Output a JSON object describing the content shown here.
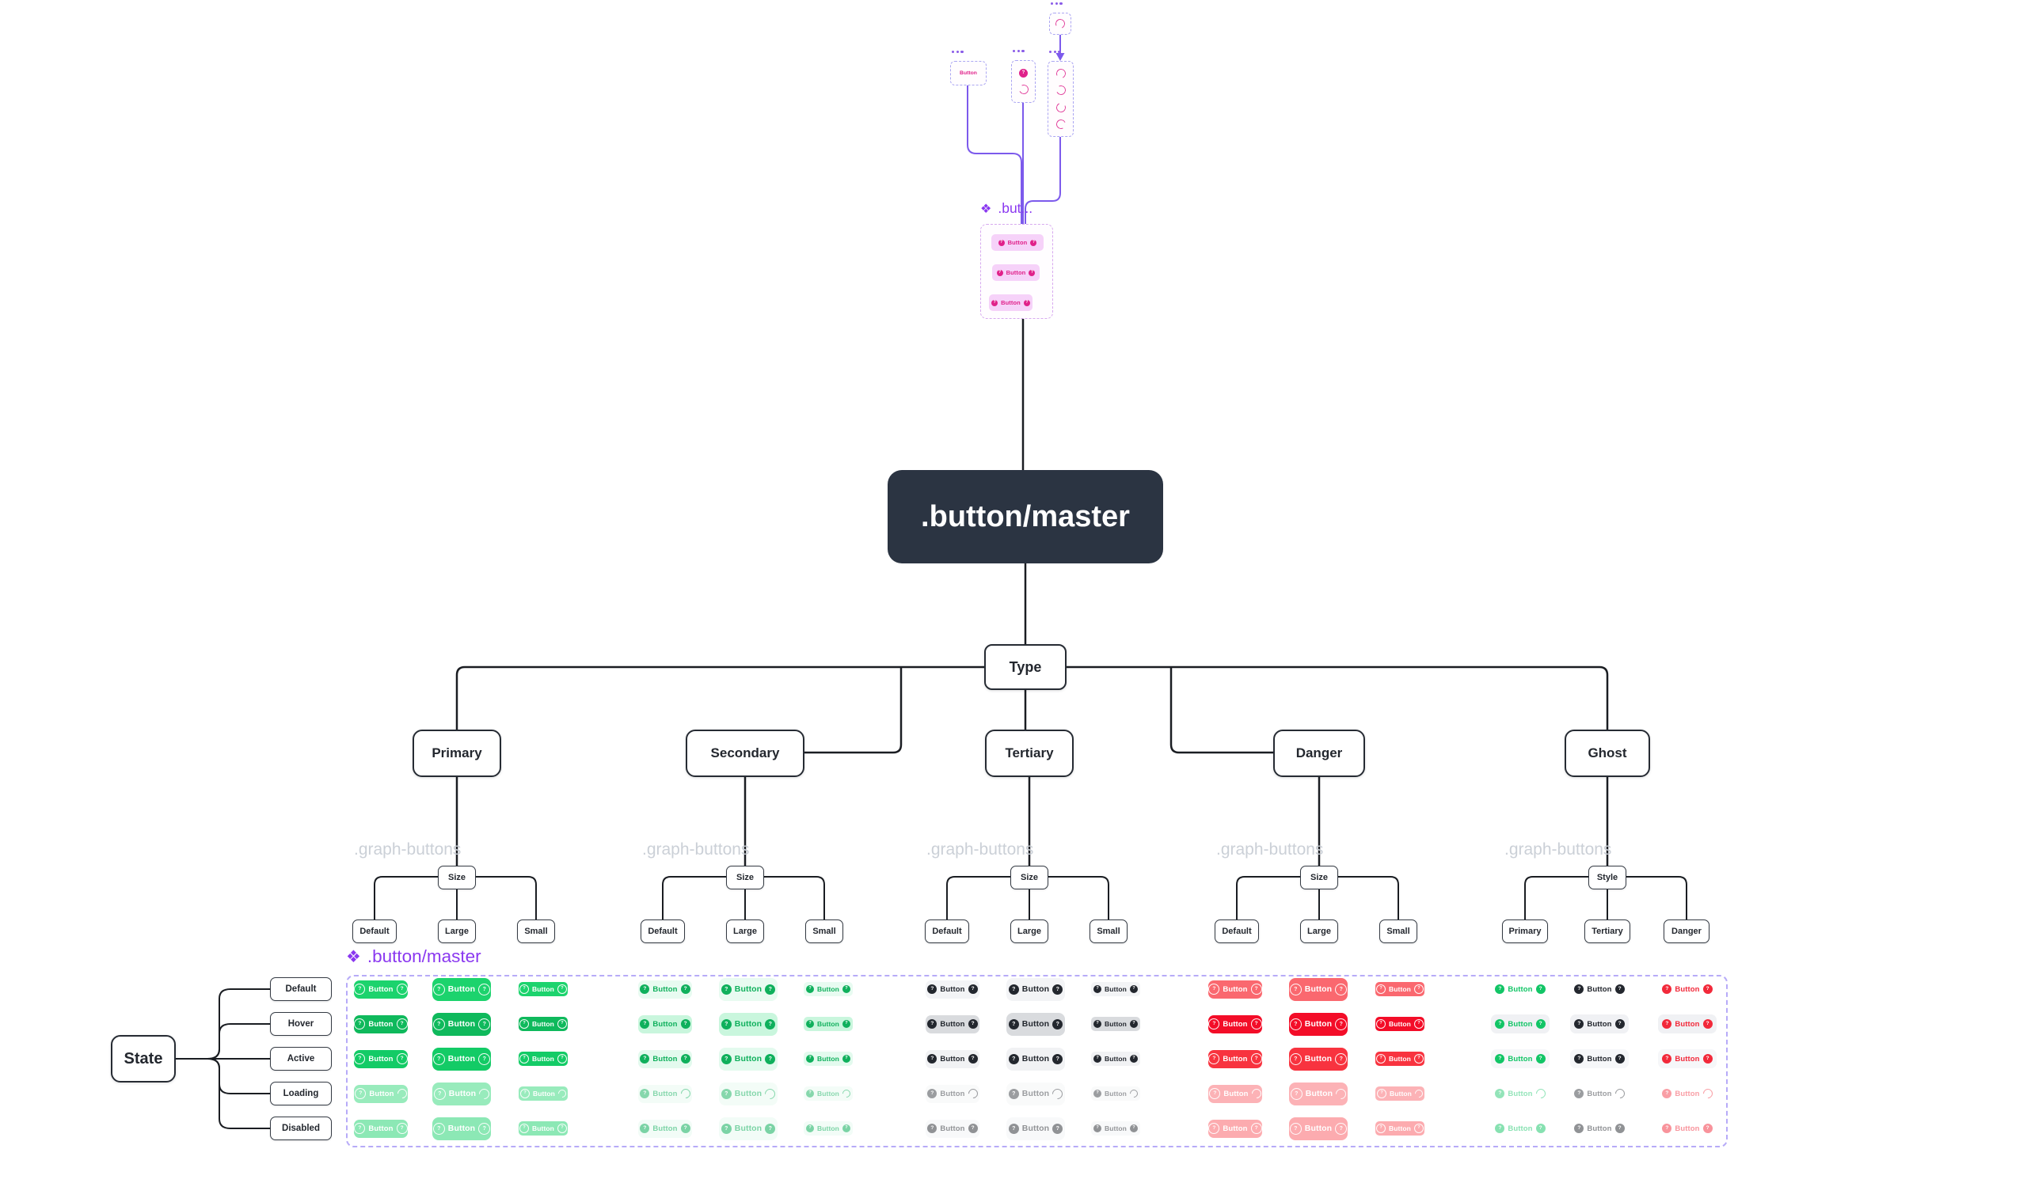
{
  "top_instances": [
    {
      "name": "instance-button",
      "label": "Button"
    },
    {
      "name": "instance-badge-spinner",
      "icons": [
        "question-badge",
        "spinner"
      ]
    },
    {
      "name": "instance-spinner-stack",
      "icons": [
        "spinner",
        "spinner",
        "spinner",
        "spinner"
      ]
    },
    {
      "name": "instance-spinner",
      "icons": [
        "spinner"
      ]
    }
  ],
  "component_instance": {
    "icon": "component-icon",
    "label": ".but...",
    "buttons": [
      "Button",
      "Button",
      "Button"
    ]
  },
  "master_node": {
    "label": ".button/master"
  },
  "tree": {
    "root": "Type",
    "group_overlay_label": ".graph-buttons",
    "branches": [
      {
        "label": "Primary",
        "pivot": "Size",
        "children": [
          "Default",
          "Large",
          "Small"
        ]
      },
      {
        "label": "Secondary",
        "pivot": "Size",
        "children": [
          "Default",
          "Large",
          "Small"
        ]
      },
      {
        "label": "Tertiary",
        "pivot": "Size",
        "children": [
          "Default",
          "Large",
          "Small"
        ]
      },
      {
        "label": "Danger",
        "pivot": "Size",
        "children": [
          "Default",
          "Large",
          "Small"
        ]
      },
      {
        "label": "Ghost",
        "pivot": "Style",
        "children": [
          "Primary",
          "Tertiary",
          "Danger"
        ]
      }
    ]
  },
  "states_tree": {
    "root": "State",
    "children": [
      "Default",
      "Hover",
      "Active",
      "Loading",
      "Disabled"
    ]
  },
  "sheet": {
    "icon": "component-icon",
    "label": ".button/master"
  },
  "button_grid": {
    "button_text": "Button",
    "groups": [
      {
        "name": "Primary",
        "kind": "solid",
        "icon": "ring",
        "text_color": "#FFFFFF",
        "rows": [
          {
            "state": "Default",
            "bg": "#1CD36D",
            "opacity": 1
          },
          {
            "state": "Hover",
            "bg": "#0FB95C",
            "opacity": 1
          },
          {
            "state": "Active",
            "bg": "#13CB66",
            "opacity": 1
          },
          {
            "state": "Loading",
            "bg": "#1CD36D",
            "opacity": 0.45,
            "spinner": true
          },
          {
            "state": "Disabled",
            "bg": "#1CD36D",
            "opacity": 0.5
          }
        ]
      },
      {
        "name": "Secondary",
        "kind": "soft",
        "icon": "fill",
        "text_color": "#0FB05C",
        "rows": [
          {
            "state": "Default",
            "bg": "#E8FBF1",
            "opacity": 1
          },
          {
            "state": "Hover",
            "bg": "#C9F6DD",
            "opacity": 1
          },
          {
            "state": "Active",
            "bg": "#E3FAEE",
            "opacity": 1
          },
          {
            "state": "Loading",
            "bg": "#E8FBF1",
            "opacity": 0.5,
            "spinner": true
          },
          {
            "state": "Disabled",
            "bg": "#E8FBF1",
            "opacity": 0.55
          }
        ]
      },
      {
        "name": "Tertiary",
        "kind": "soft",
        "icon": "fill",
        "text_color": "#23272E",
        "rows": [
          {
            "state": "Default",
            "bg": "#F3F4F6",
            "opacity": 1
          },
          {
            "state": "Hover",
            "bg": "#D9DBDE",
            "opacity": 1
          },
          {
            "state": "Active",
            "bg": "#F1F2F4",
            "opacity": 1
          },
          {
            "state": "Loading",
            "bg": "#F3F4F6",
            "opacity": 0.45,
            "spinner": true
          },
          {
            "state": "Disabled",
            "bg": "#F3F4F6",
            "opacity": 0.5
          }
        ]
      },
      {
        "name": "Danger",
        "kind": "solid",
        "icon": "ring",
        "text_color": "#FFFFFF",
        "rows": [
          {
            "state": "Default",
            "bg": "#FA686F",
            "opacity": 1
          },
          {
            "state": "Hover",
            "bg": "#F30D28",
            "opacity": 1
          },
          {
            "state": "Active",
            "bg": "#F8333F",
            "opacity": 1
          },
          {
            "state": "Loading",
            "bg": "#FA686F",
            "opacity": 0.5,
            "spinner": true
          },
          {
            "state": "Disabled",
            "bg": "#FA686F",
            "opacity": 0.55
          }
        ]
      },
      {
        "name": "Ghost",
        "kind": "ghost",
        "icon": "fill",
        "columns": [
          {
            "label": "Primary",
            "color": "#12C566"
          },
          {
            "label": "Tertiary",
            "color": "#23272E"
          },
          {
            "label": "Danger",
            "color": "#F2293A"
          }
        ],
        "rows": [
          {
            "state": "Default",
            "bg": "transparent",
            "opacity": 1
          },
          {
            "state": "Hover",
            "bg": "#F0F1F4",
            "opacity": 1
          },
          {
            "state": "Active",
            "bg": "#F6F7F9",
            "opacity": 1
          },
          {
            "state": "Loading",
            "bg": "transparent",
            "opacity": 0.45,
            "spinner": true
          },
          {
            "state": "Disabled",
            "bg": "transparent",
            "opacity": 0.5
          }
        ]
      }
    ]
  },
  "colors": {
    "ink": "#23272E",
    "wire_dark": "#1A1D22",
    "wire_purple": "#7C5AEC",
    "magenta": "#E0218A",
    "pink_button_bg": "#F6D2F9",
    "component_purple": "#8A38F0",
    "graph_label_gray": "#CBD0D7",
    "master_bg": "#2B3442",
    "panel_dash": "#B7ABF8"
  }
}
